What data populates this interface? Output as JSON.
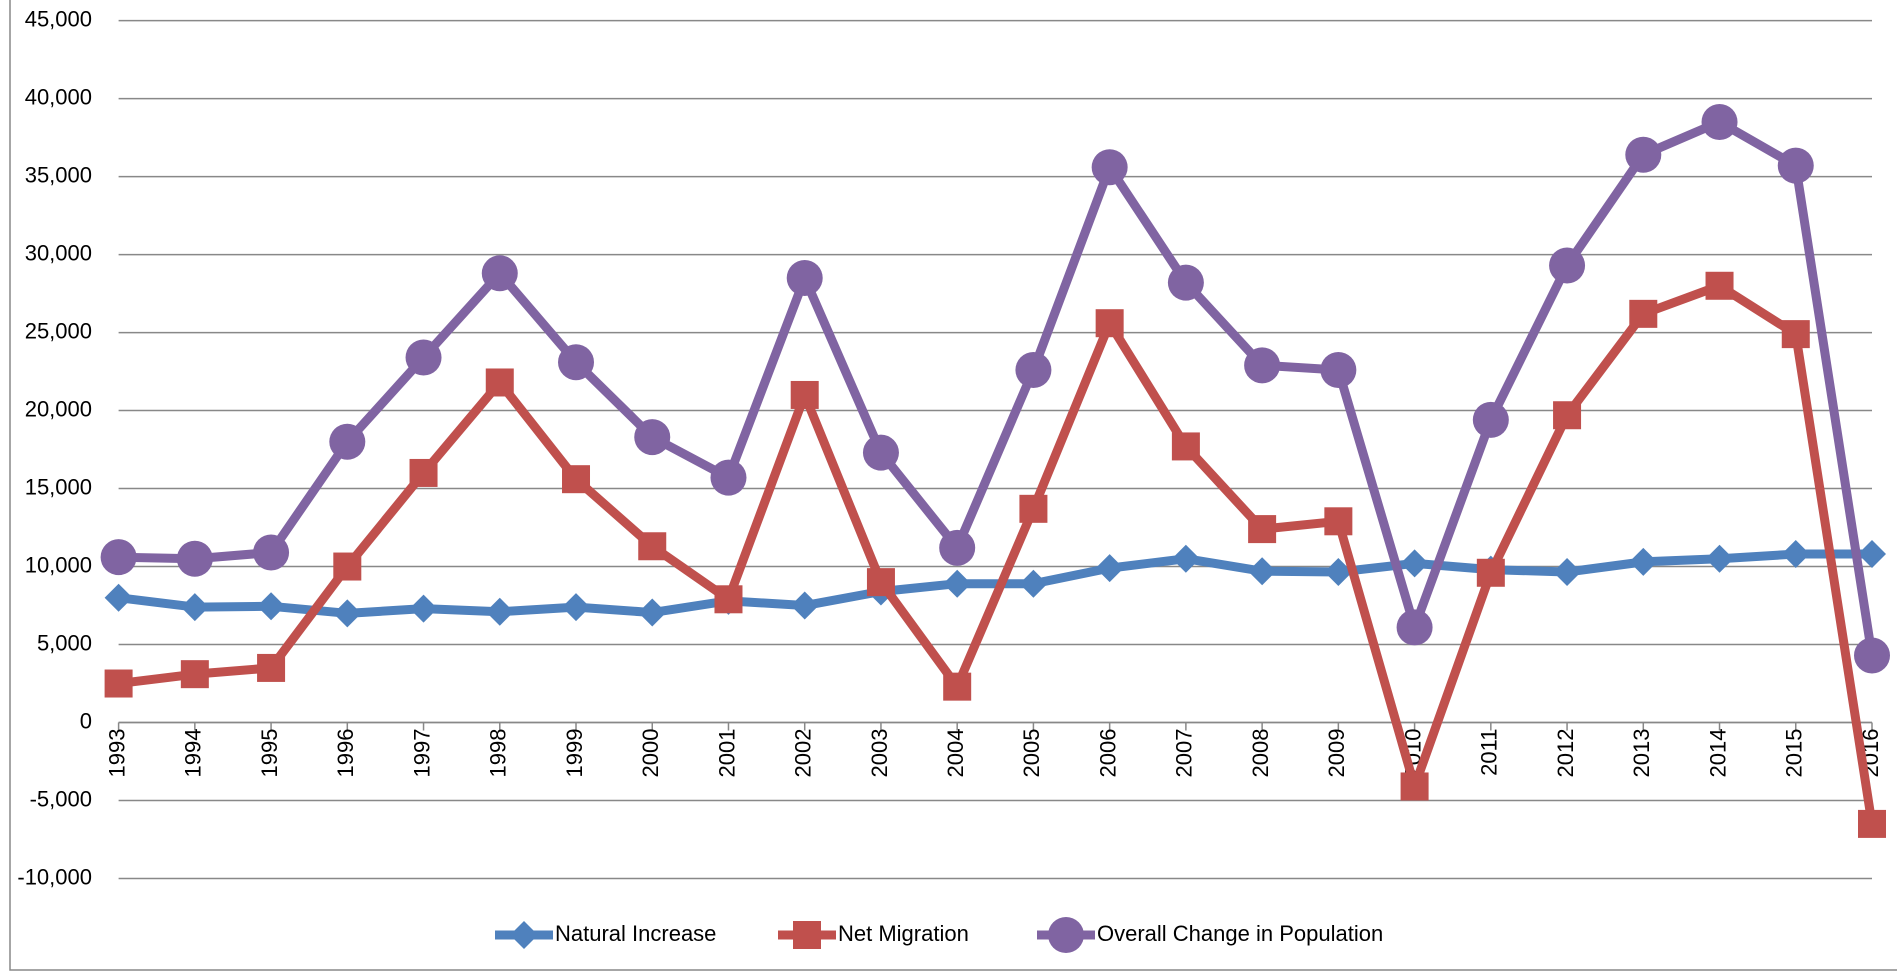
{
  "chart_data": {
    "type": "line",
    "categories": [
      "1993",
      "1994",
      "1995",
      "1996",
      "1997",
      "1998",
      "1999",
      "2000",
      "2001",
      "2002",
      "2003",
      "2004",
      "2005",
      "2006",
      "2007",
      "2008",
      "2009",
      "2010",
      "2011",
      "2012",
      "2013",
      "2014",
      "2015",
      "2016"
    ],
    "series": [
      {
        "name": "Natural Increase",
        "color": "#4f81bd",
        "marker": "diamond",
        "values": [
          8000,
          7400,
          7450,
          7000,
          7300,
          7100,
          7400,
          7050,
          7800,
          7500,
          8400,
          8900,
          8900,
          9900,
          10500,
          9700,
          9650,
          10200,
          9800,
          9650,
          10300,
          10500,
          10800,
          10800
        ]
      },
      {
        "name": "Net Migration",
        "color": "#c0504d",
        "marker": "square",
        "values": [
          2500,
          3100,
          3500,
          10000,
          16000,
          21800,
          15600,
          11300,
          7900,
          21000,
          9000,
          2300,
          13700,
          25600,
          17700,
          12400,
          12900,
          -4100,
          9600,
          19700,
          26200,
          28000,
          24900,
          -6500
        ]
      },
      {
        "name": "Overall Change in Population",
        "color": "#8064a2",
        "marker": "circle",
        "values": [
          10600,
          10500,
          10900,
          18000,
          23400,
          28800,
          23100,
          18300,
          15700,
          28500,
          17300,
          11200,
          22600,
          35600,
          28200,
          22900,
          22600,
          6100,
          19400,
          29300,
          36400,
          38500,
          35700,
          4300
        ]
      }
    ],
    "ylim": [
      -10000,
      45000
    ],
    "yticks": [
      {
        "value": -10000,
        "label": "-10,000"
      },
      {
        "value": -5000,
        "label": "-5,000"
      },
      0,
      {
        "value": 5000,
        "label": "5,000"
      },
      {
        "value": 10000,
        "label": "10,000"
      },
      {
        "value": 15000,
        "label": "15,000"
      },
      {
        "value": 20000,
        "label": "20,000"
      },
      {
        "value": 25000,
        "label": "25,000"
      },
      {
        "value": 30000,
        "label": "30,000"
      },
      {
        "value": 35000,
        "label": "35,000"
      },
      {
        "value": 40000,
        "label": "40,000"
      },
      {
        "value": 45000,
        "label": "45,000"
      }
    ],
    "grid": true,
    "legend": "bottom"
  }
}
